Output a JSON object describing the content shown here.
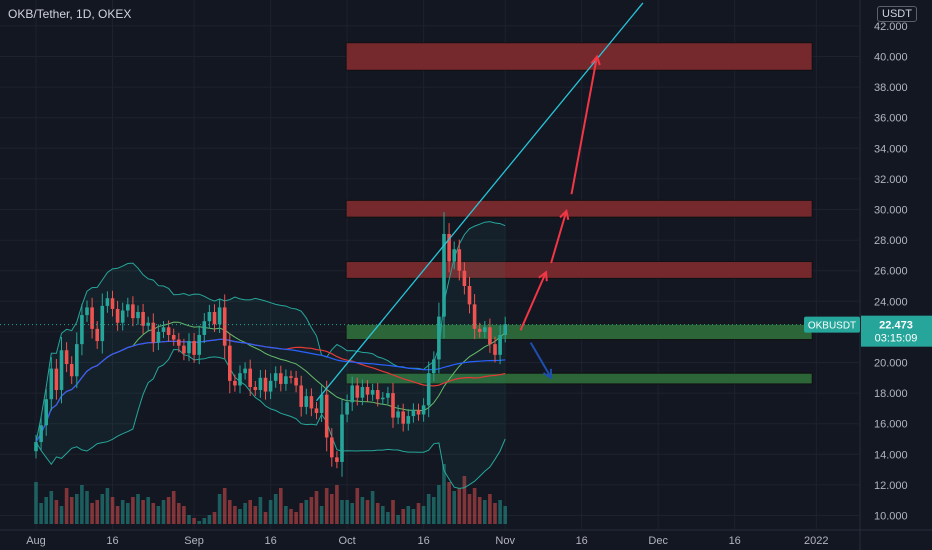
{
  "header": {
    "title": "OKB/Tether, 1D, OKEX",
    "currency": "USDT"
  },
  "price_tag": {
    "symbol": "OKBUSDT",
    "price": "22.473",
    "countdown": "03:15:09"
  },
  "colors": {
    "background": "#131722",
    "up": "#26a69a",
    "down": "#ef5350",
    "resistance_zone": "#7b2a2e",
    "support_zone": "#2e6a3a",
    "trendline": "#26c6da",
    "bull_arrow": "#f23645",
    "bear_arrow": "#1e4fb0",
    "sma_red": "#e53935",
    "sma_blue": "#2962ff",
    "bb_band": "#26a69a"
  },
  "chart_data": {
    "type": "candlestick",
    "title": "OKB/Tether, 1D, OKEX",
    "ylim": [
      9,
      43
    ],
    "yticks": [
      10,
      12,
      14,
      16,
      18,
      20,
      22,
      24,
      26,
      28,
      30,
      32,
      34,
      36,
      38,
      40,
      42
    ],
    "ytick_labels": [
      "10.000",
      "12.000",
      "14.000",
      "16.000",
      "18.000",
      "20.000",
      "22.000",
      "24.000",
      "26.000",
      "28.000",
      "30.000",
      "32.000",
      "34.000",
      "36.000",
      "38.000",
      "40.000",
      "42.000"
    ],
    "xticks": [
      {
        "label": "Aug",
        "day": 0
      },
      {
        "label": "16",
        "day": 15
      },
      {
        "label": "Sep",
        "day": 31
      },
      {
        "label": "16",
        "day": 46
      },
      {
        "label": "Oct",
        "day": 61
      },
      {
        "label": "16",
        "day": 76
      },
      {
        "label": "Nov",
        "day": 92
      },
      {
        "label": "16",
        "day": 107
      },
      {
        "label": "Dec",
        "day": 122
      },
      {
        "label": "16",
        "day": 137
      },
      {
        "label": "2022",
        "day": 153
      }
    ],
    "closes": [
      14.8,
      15.9,
      17.6,
      19.6,
      18.2,
      20.8,
      19.9,
      19.1,
      21.2,
      23.1,
      23.6,
      22.2,
      21.4,
      23.7,
      24.2,
      23.5,
      22.6,
      23.4,
      23.8,
      22.9,
      23.3,
      22.4,
      22.6,
      21.3,
      22.0,
      22.3,
      21.8,
      21.5,
      21.1,
      20.6,
      21.4,
      20.5,
      21.8,
      22.7,
      23.3,
      22.5,
      23.6,
      21.1,
      18.8,
      18.5,
      19.3,
      19.6,
      18.4,
      18.2,
      19.0,
      18.1,
      18.8,
      19.3,
      18.6,
      19.1,
      19.0,
      18.5,
      17.1,
      17.8,
      17.0,
      16.7,
      17.9,
      15.1,
      13.8,
      13.5,
      16.6,
      17.4,
      18.5,
      17.7,
      18.4,
      17.9,
      18.2,
      17.6,
      17.7,
      18.0,
      16.4,
      16.8,
      16.0,
      16.5,
      16.9,
      16.6,
      17.2,
      19.3,
      20.2,
      23.0,
      28.4,
      26.6,
      27.4,
      26.0,
      25.0,
      23.8,
      22.2,
      22.0,
      22.3,
      21.2,
      20.5,
      21.8,
      22.5
    ],
    "current_price": 22.473,
    "zones": [
      {
        "kind": "resistance",
        "from_day": 61,
        "to_day": 152,
        "low": 39.1,
        "high": 40.9
      },
      {
        "kind": "resistance",
        "from_day": 61,
        "to_day": 152,
        "low": 29.5,
        "high": 30.6
      },
      {
        "kind": "resistance",
        "from_day": 61,
        "to_day": 152,
        "low": 25.5,
        "high": 26.6
      },
      {
        "kind": "support",
        "from_day": 61,
        "to_day": 152,
        "low": 21.5,
        "high": 22.5
      },
      {
        "kind": "support",
        "from_day": 61,
        "to_day": 152,
        "low": 18.6,
        "high": 19.3
      }
    ],
    "trendline": {
      "start": [
        55,
        17.5
      ],
      "end": [
        119,
        43.5
      ]
    },
    "bull_arrows": [
      {
        "from": [
          95,
          22.1
        ],
        "to": [
          100,
          25.9
        ]
      },
      {
        "from": [
          101,
          26.5
        ],
        "to": [
          104,
          29.9
        ]
      },
      {
        "from": [
          105,
          31.0
        ],
        "to": [
          110,
          40.0
        ]
      }
    ],
    "bear_arrow": {
      "from": [
        97,
        21.3
      ],
      "to": [
        101,
        19.0
      ]
    },
    "volume_max": 20,
    "volumes": [
      14,
      7,
      9,
      11,
      8,
      6,
      12,
      9,
      10,
      13,
      11,
      7,
      8,
      10,
      12,
      9,
      6,
      8,
      7,
      9,
      10,
      8,
      9,
      7,
      6,
      8,
      9,
      11,
      7,
      6,
      3,
      2,
      1,
      2,
      3,
      4,
      10,
      12,
      8,
      6,
      5,
      7,
      8,
      6,
      9,
      4,
      8,
      10,
      12,
      6,
      5,
      4,
      7,
      8,
      9,
      11,
      6,
      12,
      10,
      13,
      8,
      8,
      7,
      12,
      9,
      8,
      11,
      7,
      6,
      4,
      8,
      3,
      5,
      6,
      5,
      7,
      6,
      10,
      9,
      13,
      20,
      14,
      11,
      12,
      16,
      10,
      12,
      9,
      8,
      10,
      7,
      8,
      6
    ]
  }
}
